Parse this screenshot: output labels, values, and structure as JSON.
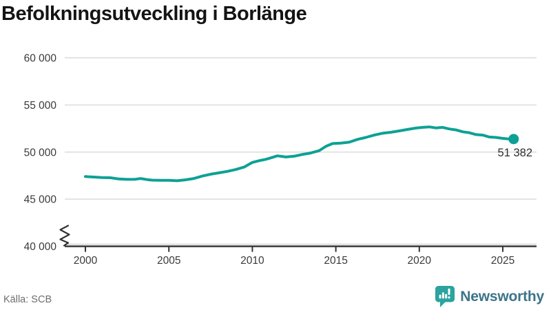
{
  "title": "Befolkningsutveckling i Borlänge",
  "source": {
    "label": "Källa: SCB"
  },
  "branding": {
    "name": "Newsworthy",
    "icon": "newsworthy-bubble-chart-icon",
    "icon_color": "#2ba39e",
    "text_color": "#3c7489"
  },
  "colors": {
    "line": "#0da195",
    "grid": "#e3e3e3",
    "axis": "#333333",
    "tick_label": "#3a3a3a",
    "end_label": "#2e2e2e"
  },
  "chart_data": {
    "type": "line",
    "title": "Befolkningsutveckling i Borlänge",
    "xlabel": "",
    "ylabel": "",
    "x_ticks": [
      2000,
      2005,
      2010,
      2015,
      2020,
      2025
    ],
    "x_tick_labels": [
      "2000",
      "2005",
      "2010",
      "2015",
      "2020",
      "2025"
    ],
    "y_ticks": [
      40000,
      45000,
      50000,
      55000,
      60000
    ],
    "y_tick_labels": [
      "40 000",
      "45 000",
      "50 000",
      "55 000",
      "60 000"
    ],
    "ylim": [
      40000,
      60000
    ],
    "xlim": [
      2000,
      2025
    ],
    "grid": "horizontal",
    "axis_break_at_bottom": true,
    "legend": "none",
    "end_label": "51 382",
    "end_value": 51382,
    "series": [
      {
        "name": "Befolkning Borlänge",
        "points": [
          [
            2000,
            47400
          ],
          [
            2000.5,
            47350
          ],
          [
            2001,
            47300
          ],
          [
            2001.5,
            47280
          ],
          [
            2002,
            47150
          ],
          [
            2002.5,
            47100
          ],
          [
            2003,
            47120
          ],
          [
            2003.3,
            47200
          ],
          [
            2003.7,
            47080
          ],
          [
            2004,
            47020
          ],
          [
            2004.5,
            47000
          ],
          [
            2005,
            47000
          ],
          [
            2005.5,
            46960
          ],
          [
            2006,
            47060
          ],
          [
            2006.5,
            47200
          ],
          [
            2007,
            47450
          ],
          [
            2007.5,
            47650
          ],
          [
            2008,
            47800
          ],
          [
            2008.5,
            47950
          ],
          [
            2009,
            48150
          ],
          [
            2009.5,
            48400
          ],
          [
            2010,
            48900
          ],
          [
            2010.4,
            49080
          ],
          [
            2010.8,
            49230
          ],
          [
            2011.1,
            49380
          ],
          [
            2011.5,
            49600
          ],
          [
            2012,
            49480
          ],
          [
            2012.5,
            49560
          ],
          [
            2013,
            49750
          ],
          [
            2013.5,
            49900
          ],
          [
            2014,
            50150
          ],
          [
            2014.4,
            50600
          ],
          [
            2014.8,
            50900
          ],
          [
            2015.3,
            50950
          ],
          [
            2015.8,
            51050
          ],
          [
            2016.3,
            51350
          ],
          [
            2016.8,
            51550
          ],
          [
            2017.3,
            51800
          ],
          [
            2017.8,
            52000
          ],
          [
            2018.3,
            52100
          ],
          [
            2018.8,
            52250
          ],
          [
            2019.3,
            52400
          ],
          [
            2019.8,
            52550
          ],
          [
            2020.2,
            52620
          ],
          [
            2020.6,
            52670
          ],
          [
            2021,
            52560
          ],
          [
            2021.4,
            52620
          ],
          [
            2021.8,
            52450
          ],
          [
            2022.2,
            52350
          ],
          [
            2022.6,
            52150
          ],
          [
            2023,
            52050
          ],
          [
            2023.4,
            51850
          ],
          [
            2023.8,
            51800
          ],
          [
            2024.2,
            51600
          ],
          [
            2024.6,
            51550
          ],
          [
            2025,
            51450
          ],
          [
            2025.3,
            51400
          ],
          [
            2025.65,
            51382
          ]
        ]
      }
    ]
  }
}
